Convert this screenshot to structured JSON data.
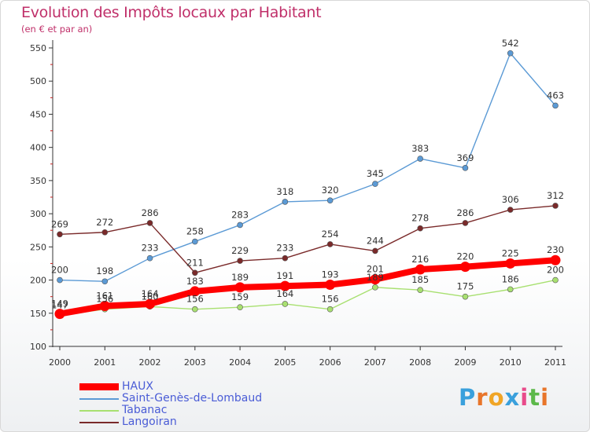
{
  "header": {
    "title": "Evolution des Impôts locaux par Habitant",
    "subtitle": "(en € et par an)"
  },
  "logo": {
    "text": "Proxiti",
    "letters": [
      "P",
      "r",
      "o",
      "x",
      "i",
      "t",
      "i"
    ],
    "colors": [
      "#3aa0dc",
      "#e8752a",
      "#f0a526",
      "#3aa0dc",
      "#e84a8a",
      "#5cb84a",
      "#e8752a"
    ]
  },
  "chart_data": {
    "type": "line",
    "x": [
      "2000",
      "2001",
      "2002",
      "2003",
      "2004",
      "2005",
      "2006",
      "2007",
      "2008",
      "2009",
      "2010",
      "2011"
    ],
    "ylim": [
      100,
      550
    ],
    "yticks": [
      100,
      150,
      200,
      250,
      300,
      350,
      400,
      450,
      500,
      550
    ],
    "grid": false,
    "legend_position": "bottom-left",
    "series": [
      {
        "name": "HAUX",
        "color": "#ff0000",
        "values": [
          149,
          161,
          164,
          183,
          189,
          191,
          193,
          201,
          216,
          220,
          225,
          230
        ]
      },
      {
        "name": "Saint-Genès-de-Lombaud",
        "color": "#5b9ad5",
        "values": [
          200,
          198,
          233,
          258,
          283,
          318,
          320,
          345,
          383,
          369,
          542,
          463
        ]
      },
      {
        "name": "Tabanac",
        "color": "#a8e070",
        "values": [
          147,
          156,
          160,
          156,
          159,
          164,
          156,
          189,
          185,
          175,
          186,
          200
        ]
      },
      {
        "name": "Langoiran",
        "color": "#7a2a2a",
        "values": [
          269,
          272,
          286,
          211,
          229,
          233,
          254,
          244,
          278,
          286,
          306,
          312
        ]
      }
    ]
  }
}
